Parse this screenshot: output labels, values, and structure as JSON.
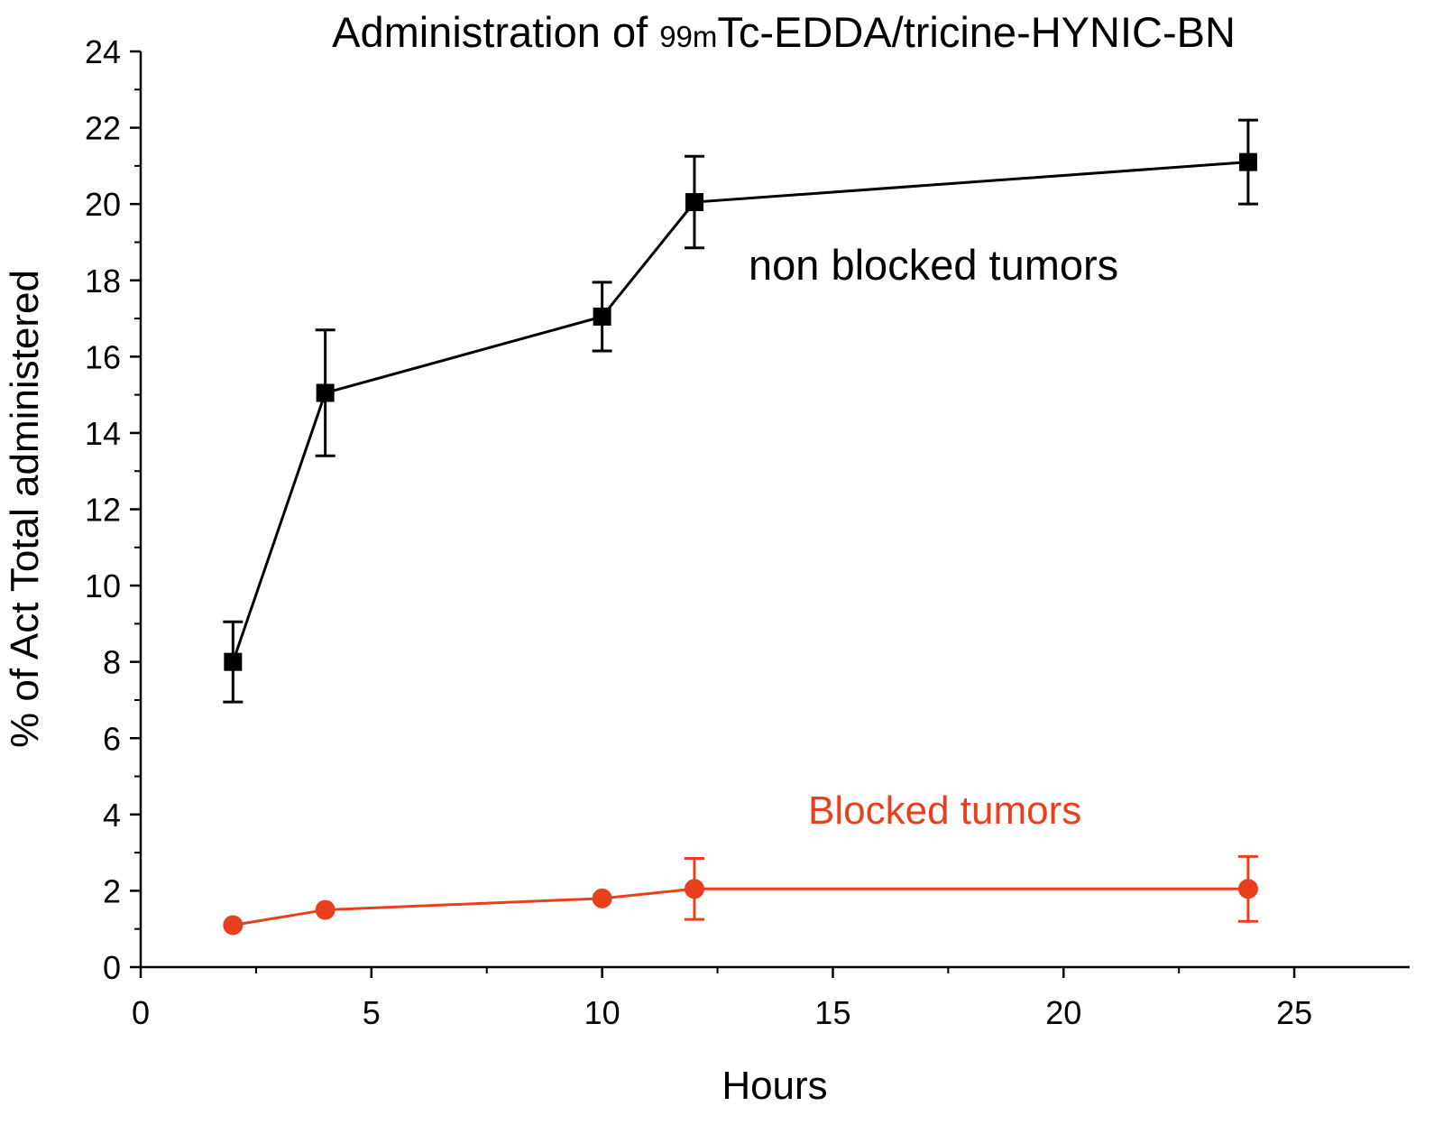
{
  "chart_data": {
    "type": "line",
    "title_parts": {
      "before": "Administration of ",
      "isotope": "99m",
      "after": "Tc-EDDA/tricine-HYNIC-BN"
    },
    "xlabel": "Hours",
    "ylabel": "% of Act Total administered",
    "xlim": [
      0,
      27.5
    ],
    "ylim": [
      0,
      24
    ],
    "x_ticks": [
      0,
      5,
      10,
      15,
      20,
      25
    ],
    "y_ticks": [
      0,
      2,
      4,
      6,
      8,
      10,
      12,
      14,
      16,
      18,
      20,
      22,
      24
    ],
    "series": [
      {
        "name": "non blocked tumors",
        "color": "#000000",
        "marker": "square",
        "x": [
          2,
          4,
          10,
          12,
          24
        ],
        "y": [
          8.0,
          15.05,
          17.05,
          20.05,
          21.1
        ],
        "error": [
          1.05,
          1.65,
          0.9,
          1.2,
          1.1
        ]
      },
      {
        "name": "Blocked tumors",
        "color": "#e8401c",
        "marker": "circle",
        "x": [
          2,
          4,
          10,
          12,
          24
        ],
        "y": [
          1.1,
          1.5,
          1.8,
          2.05,
          2.05
        ],
        "error": [
          null,
          null,
          null,
          0.8,
          0.85
        ]
      }
    ]
  }
}
